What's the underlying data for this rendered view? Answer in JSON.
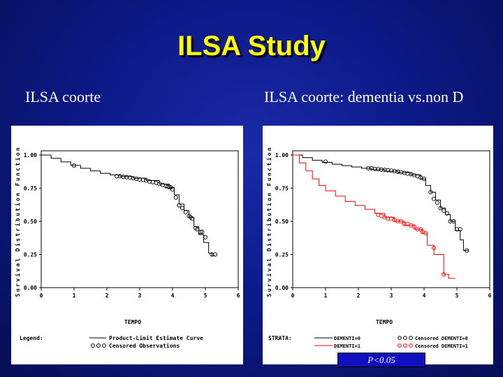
{
  "slide": {
    "title": "ILSA Study",
    "left_subtitle": "ILSA coorte",
    "right_subtitle": "ILSA coorte: dementia vs.non D",
    "p_value": "P<0.05"
  },
  "chart_data": [
    {
      "type": "line",
      "title": "ILSA coorte",
      "xlabel": "TEMPO",
      "ylabel": "Survival Distribution Function",
      "xlim": [
        0,
        6
      ],
      "ylim": [
        0,
        1
      ],
      "xticks": [
        "0",
        "1",
        "2",
        "3",
        "4",
        "5",
        "6"
      ],
      "yticks": [
        "0.00",
        "0.25",
        "0.50",
        "0.75",
        "1.00"
      ],
      "legend": {
        "title": "Legend:",
        "items": [
          {
            "marker": "line",
            "label": "Product-Limit Estimate Curve"
          },
          {
            "marker": "circles",
            "label": "Censored Observations"
          }
        ]
      },
      "series": [
        {
          "name": "Product-Limit Estimate Curve",
          "color": "#000000",
          "x": [
            0,
            0.3,
            0.6,
            0.9,
            1.2,
            1.5,
            1.8,
            2.1,
            2.4,
            2.8,
            3.2,
            3.6,
            3.9,
            4.05,
            4.2,
            4.35,
            4.5,
            4.65,
            4.8,
            4.95,
            5.1,
            5.2,
            5.3
          ],
          "y": [
            1.0,
            0.975,
            0.948,
            0.922,
            0.9,
            0.88,
            0.862,
            0.85,
            0.838,
            0.825,
            0.808,
            0.78,
            0.755,
            0.7,
            0.63,
            0.58,
            0.53,
            0.46,
            0.4,
            0.34,
            0.26,
            0.24,
            0.24
          ],
          "censored_x": [
            1.0,
            2.3,
            2.4,
            2.5,
            2.6,
            2.7,
            2.8,
            2.9,
            3.0,
            3.1,
            3.2,
            3.3,
            3.4,
            3.5,
            3.6,
            3.7,
            3.8,
            3.85,
            3.9,
            3.95,
            4.0,
            4.1,
            4.2,
            4.3,
            4.4,
            4.5,
            4.55,
            4.6,
            4.7,
            4.75,
            4.85,
            4.9,
            5.0,
            5.2,
            5.3
          ],
          "censored_y": [
            0.92,
            0.84,
            0.84,
            0.835,
            0.833,
            0.83,
            0.825,
            0.82,
            0.815,
            0.812,
            0.808,
            0.8,
            0.795,
            0.79,
            0.782,
            0.775,
            0.765,
            0.762,
            0.758,
            0.756,
            0.74,
            0.68,
            0.62,
            0.6,
            0.57,
            0.54,
            0.53,
            0.52,
            0.45,
            0.44,
            0.42,
            0.42,
            0.38,
            0.25,
            0.25
          ]
        }
      ]
    },
    {
      "type": "line",
      "title": "ILSA coorte: dementia vs.non D",
      "xlabel": "TEMPO",
      "ylabel": "Survival Distribution Function",
      "xlim": [
        0,
        6
      ],
      "ylim": [
        0,
        1
      ],
      "xticks": [
        "0",
        "1",
        "2",
        "3",
        "4",
        "5",
        "6"
      ],
      "yticks": [
        "0.00",
        "0.25",
        "0.50",
        "0.75",
        "1.00"
      ],
      "legend": {
        "title": "STRATA:",
        "items": [
          {
            "marker": "line",
            "color": "#000000",
            "label": "DEMENTI=0"
          },
          {
            "marker": "circles",
            "color": "#000000",
            "label": "Censored DEMENTI=0"
          },
          {
            "marker": "line",
            "color": "#ff0000",
            "label": "DEMENTI=1"
          },
          {
            "marker": "circles",
            "color": "#ff0000",
            "label": "Censored DEMENTI=1"
          }
        ]
      },
      "series": [
        {
          "name": "DEMENTI=0",
          "color": "#000000",
          "x": [
            0,
            0.3,
            0.6,
            0.9,
            1.2,
            1.5,
            1.8,
            2.1,
            2.4,
            2.8,
            3.2,
            3.6,
            3.9,
            4.05,
            4.2,
            4.35,
            4.5,
            4.65,
            4.8,
            4.95,
            5.1,
            5.2,
            5.35
          ],
          "y": [
            1.0,
            0.98,
            0.96,
            0.945,
            0.93,
            0.92,
            0.91,
            0.9,
            0.89,
            0.878,
            0.868,
            0.85,
            0.82,
            0.77,
            0.72,
            0.66,
            0.6,
            0.55,
            0.5,
            0.43,
            0.36,
            0.28,
            0.27
          ],
          "censored_x": [
            1.0,
            2.3,
            2.4,
            2.5,
            2.6,
            2.7,
            2.8,
            2.9,
            3.0,
            3.1,
            3.2,
            3.3,
            3.4,
            3.5,
            3.6,
            3.7,
            3.8,
            3.9,
            4.0,
            4.2,
            4.3,
            4.4,
            4.5,
            4.6,
            4.7,
            4.8,
            4.9,
            5.0,
            5.1,
            5.3
          ],
          "censored_y": [
            0.95,
            0.9,
            0.9,
            0.895,
            0.893,
            0.89,
            0.888,
            0.885,
            0.882,
            0.878,
            0.874,
            0.87,
            0.865,
            0.86,
            0.855,
            0.848,
            0.84,
            0.83,
            0.82,
            0.72,
            0.67,
            0.64,
            0.6,
            0.58,
            0.56,
            0.5,
            0.5,
            0.44,
            0.44,
            0.28
          ]
        },
        {
          "name": "DEMENTI=1",
          "color": "#ff0000",
          "x": [
            0,
            0.2,
            0.4,
            0.6,
            0.8,
            1.0,
            1.3,
            1.6,
            1.9,
            2.2,
            2.5,
            2.8,
            3.1,
            3.4,
            3.7,
            3.95,
            4.1,
            4.3,
            4.4,
            4.6,
            4.75,
            4.95
          ],
          "y": [
            1.0,
            0.94,
            0.88,
            0.82,
            0.77,
            0.73,
            0.69,
            0.65,
            0.62,
            0.59,
            0.56,
            0.53,
            0.5,
            0.47,
            0.44,
            0.41,
            0.32,
            0.25,
            0.25,
            0.1,
            0.07,
            0.07
          ],
          "censored_x": [
            2.6,
            2.7,
            2.8,
            2.9,
            3.0,
            3.1,
            3.2,
            3.3,
            3.4,
            3.5,
            3.6,
            3.7,
            3.8,
            3.9,
            3.95,
            4.05,
            4.3,
            4.6
          ],
          "censored_y": [
            0.55,
            0.54,
            0.53,
            0.52,
            0.52,
            0.51,
            0.5,
            0.5,
            0.48,
            0.48,
            0.47,
            0.46,
            0.44,
            0.44,
            0.42,
            0.41,
            0.3,
            0.1
          ]
        }
      ]
    }
  ]
}
